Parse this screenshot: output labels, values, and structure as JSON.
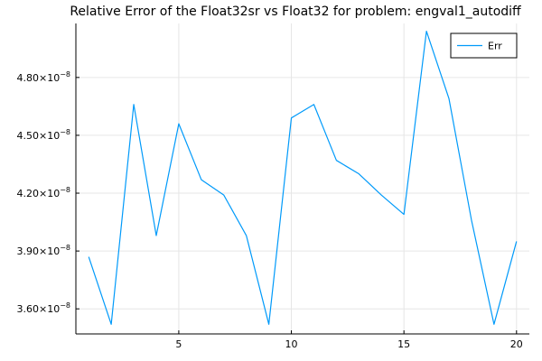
{
  "chart_data": {
    "type": "line",
    "title": "Relative Error of the Float32sr vs Float32 for problem: engval1_autodiff",
    "xlabel": "",
    "ylabel": "",
    "xlim": [
      0.43,
      20.57
    ],
    "ylim": [
      3.47e-08,
      5.08e-08
    ],
    "xticks": [
      5,
      10,
      15,
      20
    ],
    "xtick_labels": [
      "5",
      "10",
      "15",
      "20"
    ],
    "yticks": [
      3.6e-08,
      3.9e-08,
      4.2e-08,
      4.5e-08,
      4.8e-08
    ],
    "ytick_mantissas": [
      "3.60",
      "3.90",
      "4.20",
      "4.50",
      "4.80"
    ],
    "ytick_exp_base": "×10",
    "ytick_exponent": "−8",
    "grid": true,
    "legend_position": "top-right",
    "series": [
      {
        "name": "Err",
        "color": "#009AFA",
        "x": [
          1,
          2,
          3,
          4,
          5,
          6,
          7,
          8,
          9,
          10,
          11,
          12,
          13,
          14,
          15,
          16,
          17,
          18,
          19,
          20
        ],
        "y": [
          3.87e-08,
          3.52e-08,
          4.66e-08,
          3.98e-08,
          4.56e-08,
          4.27e-08,
          4.19e-08,
          3.98e-08,
          3.52e-08,
          4.59e-08,
          4.66e-08,
          4.37e-08,
          4.3e-08,
          4.19e-08,
          4.09e-08,
          5.04e-08,
          4.69e-08,
          4.06e-08,
          3.52e-08,
          3.95e-08
        ]
      }
    ]
  }
}
